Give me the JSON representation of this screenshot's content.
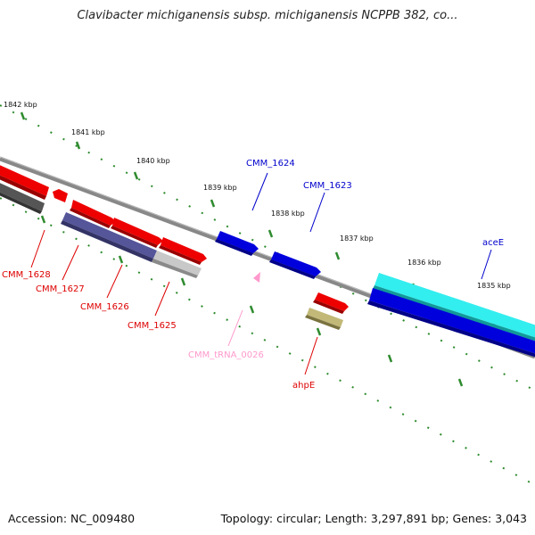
{
  "title": "Clavibacter michiganensis subsp. michiganensis NCPPB 382, co...",
  "accession": "Accession: NC_009480",
  "topology": "Topology: circular; Length: 3,297,891 bp; Genes: 3,043",
  "colors": {
    "backbone": "#888888",
    "tick": "#2e8b2e",
    "cds_red": "#ee0000",
    "cds_blue": "#0000dd",
    "cds_cyan": "#22eeee",
    "cds_dark": "#555555",
    "cds_navy": "#44448a",
    "cds_gray": "#bbbbbb",
    "cds_olive": "#b8b070",
    "trna_pink": "#ff99cc"
  },
  "ticks": [
    {
      "label": "1842 kbp"
    },
    {
      "label": "1841 kbp"
    },
    {
      "label": "1840 kbp"
    },
    {
      "label": "1839 kbp"
    },
    {
      "label": "1838 kbp"
    },
    {
      "label": "1837 kbp"
    },
    {
      "label": "1836 kbp"
    },
    {
      "label": "1835 kbp"
    }
  ],
  "genes": [
    {
      "name": "CMM_1628",
      "color": "#dd0000"
    },
    {
      "name": "CMM_1627",
      "color": "#dd0000"
    },
    {
      "name": "CMM_1626",
      "color": "#dd0000"
    },
    {
      "name": "CMM_1625",
      "color": "#dd0000"
    },
    {
      "name": "CMM_tRNA_0026",
      "color": "#ff99cc"
    },
    {
      "name": "ahpE",
      "color": "#dd0000"
    },
    {
      "name": "CMM_1624",
      "color": "#0000cc"
    },
    {
      "name": "CMM_1623",
      "color": "#0000cc"
    },
    {
      "name": "aceE",
      "color": "#0000cc"
    }
  ]
}
